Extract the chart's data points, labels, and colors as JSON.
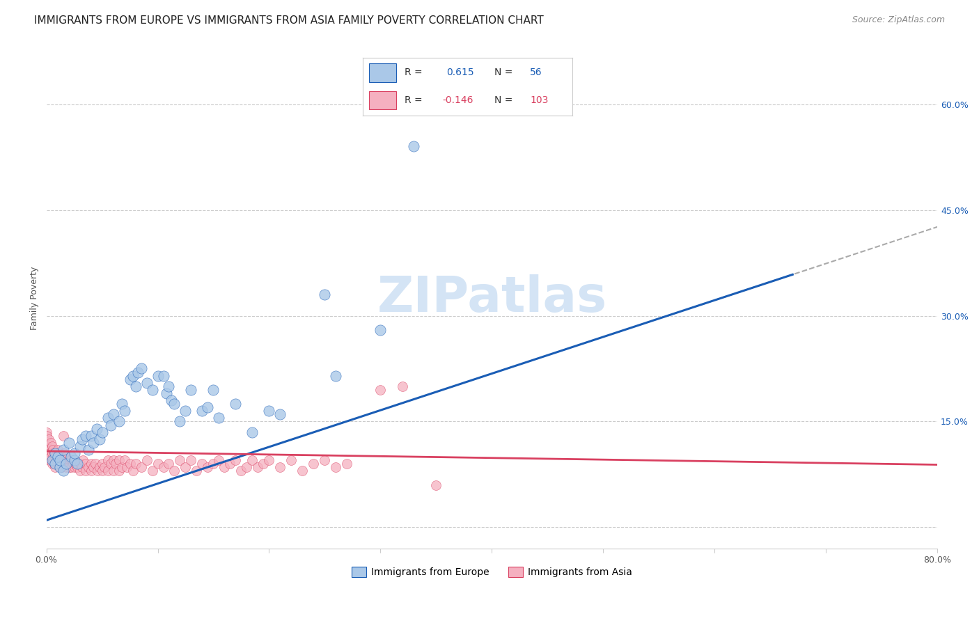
{
  "title": "IMMIGRANTS FROM EUROPE VS IMMIGRANTS FROM ASIA FAMILY POVERTY CORRELATION CHART",
  "source": "Source: ZipAtlas.com",
  "ylabel": "Family Poverty",
  "xlim": [
    0.0,
    0.8
  ],
  "ylim": [
    -0.03,
    0.68
  ],
  "ytick_positions": [
    0.0,
    0.15,
    0.3,
    0.45,
    0.6
  ],
  "ytick_labels_right": [
    "",
    "15.0%",
    "30.0%",
    "45.0%",
    "60.0%"
  ],
  "background_color": "#ffffff",
  "watermark": "ZIPatlas",
  "europe_color": "#aac8e8",
  "asia_color": "#f5b0c0",
  "europe_line_color": "#1a5db5",
  "asia_line_color": "#d94060",
  "dashed_line_color": "#aaaaaa",
  "grid_color": "#cccccc",
  "title_color": "#222222",
  "source_color": "#888888",
  "tick_color": "#555555",
  "right_tick_color": "#1a5db5",
  "watermark_color": "#d4e4f5",
  "title_fontsize": 11,
  "axis_label_fontsize": 9,
  "tick_fontsize": 9,
  "legend_fontsize": 10,
  "watermark_fontsize": 52,
  "scatter_size_europe": 120,
  "scatter_size_asia": 100,
  "europe_scatter": [
    [
      0.005,
      0.095
    ],
    [
      0.008,
      0.105
    ],
    [
      0.008,
      0.09
    ],
    [
      0.01,
      0.1
    ],
    [
      0.012,
      0.085
    ],
    [
      0.012,
      0.095
    ],
    [
      0.015,
      0.11
    ],
    [
      0.015,
      0.08
    ],
    [
      0.018,
      0.09
    ],
    [
      0.02,
      0.12
    ],
    [
      0.022,
      0.1
    ],
    [
      0.025,
      0.095
    ],
    [
      0.025,
      0.105
    ],
    [
      0.028,
      0.09
    ],
    [
      0.03,
      0.115
    ],
    [
      0.032,
      0.125
    ],
    [
      0.035,
      0.13
    ],
    [
      0.038,
      0.11
    ],
    [
      0.04,
      0.13
    ],
    [
      0.042,
      0.12
    ],
    [
      0.045,
      0.14
    ],
    [
      0.048,
      0.125
    ],
    [
      0.05,
      0.135
    ],
    [
      0.055,
      0.155
    ],
    [
      0.058,
      0.145
    ],
    [
      0.06,
      0.16
    ],
    [
      0.065,
      0.15
    ],
    [
      0.068,
      0.175
    ],
    [
      0.07,
      0.165
    ],
    [
      0.075,
      0.21
    ],
    [
      0.078,
      0.215
    ],
    [
      0.08,
      0.2
    ],
    [
      0.082,
      0.22
    ],
    [
      0.085,
      0.225
    ],
    [
      0.09,
      0.205
    ],
    [
      0.095,
      0.195
    ],
    [
      0.1,
      0.215
    ],
    [
      0.105,
      0.215
    ],
    [
      0.108,
      0.19
    ],
    [
      0.11,
      0.2
    ],
    [
      0.112,
      0.18
    ],
    [
      0.115,
      0.175
    ],
    [
      0.12,
      0.15
    ],
    [
      0.125,
      0.165
    ],
    [
      0.13,
      0.195
    ],
    [
      0.14,
      0.165
    ],
    [
      0.145,
      0.17
    ],
    [
      0.15,
      0.195
    ],
    [
      0.155,
      0.155
    ],
    [
      0.17,
      0.175
    ],
    [
      0.185,
      0.135
    ],
    [
      0.2,
      0.165
    ],
    [
      0.21,
      0.16
    ],
    [
      0.25,
      0.33
    ],
    [
      0.26,
      0.215
    ],
    [
      0.3,
      0.28
    ],
    [
      0.33,
      0.54
    ]
  ],
  "asia_scatter": [
    [
      0.0,
      0.135
    ],
    [
      0.0,
      0.13
    ],
    [
      0.0,
      0.115
    ],
    [
      0.002,
      0.125
    ],
    [
      0.002,
      0.11
    ],
    [
      0.003,
      0.105
    ],
    [
      0.003,
      0.095
    ],
    [
      0.004,
      0.12
    ],
    [
      0.004,
      0.1
    ],
    [
      0.005,
      0.115
    ],
    [
      0.005,
      0.105
    ],
    [
      0.005,
      0.09
    ],
    [
      0.006,
      0.11
    ],
    [
      0.006,
      0.095
    ],
    [
      0.007,
      0.105
    ],
    [
      0.007,
      0.09
    ],
    [
      0.008,
      0.1
    ],
    [
      0.008,
      0.085
    ],
    [
      0.009,
      0.095
    ],
    [
      0.01,
      0.11
    ],
    [
      0.01,
      0.09
    ],
    [
      0.012,
      0.1
    ],
    [
      0.012,
      0.085
    ],
    [
      0.013,
      0.095
    ],
    [
      0.014,
      0.085
    ],
    [
      0.015,
      0.13
    ],
    [
      0.015,
      0.095
    ],
    [
      0.016,
      0.105
    ],
    [
      0.018,
      0.1
    ],
    [
      0.018,
      0.085
    ],
    [
      0.02,
      0.095
    ],
    [
      0.02,
      0.085
    ],
    [
      0.022,
      0.095
    ],
    [
      0.022,
      0.085
    ],
    [
      0.024,
      0.09
    ],
    [
      0.025,
      0.095
    ],
    [
      0.025,
      0.085
    ],
    [
      0.026,
      0.09
    ],
    [
      0.028,
      0.085
    ],
    [
      0.03,
      0.09
    ],
    [
      0.03,
      0.08
    ],
    [
      0.032,
      0.085
    ],
    [
      0.033,
      0.095
    ],
    [
      0.035,
      0.09
    ],
    [
      0.035,
      0.08
    ],
    [
      0.038,
      0.085
    ],
    [
      0.04,
      0.09
    ],
    [
      0.04,
      0.08
    ],
    [
      0.042,
      0.085
    ],
    [
      0.044,
      0.09
    ],
    [
      0.046,
      0.08
    ],
    [
      0.048,
      0.085
    ],
    [
      0.05,
      0.09
    ],
    [
      0.05,
      0.08
    ],
    [
      0.052,
      0.085
    ],
    [
      0.055,
      0.095
    ],
    [
      0.055,
      0.08
    ],
    [
      0.058,
      0.09
    ],
    [
      0.06,
      0.095
    ],
    [
      0.06,
      0.08
    ],
    [
      0.062,
      0.09
    ],
    [
      0.065,
      0.095
    ],
    [
      0.065,
      0.08
    ],
    [
      0.068,
      0.085
    ],
    [
      0.07,
      0.095
    ],
    [
      0.072,
      0.085
    ],
    [
      0.075,
      0.09
    ],
    [
      0.078,
      0.08
    ],
    [
      0.08,
      0.09
    ],
    [
      0.085,
      0.085
    ],
    [
      0.09,
      0.095
    ],
    [
      0.095,
      0.08
    ],
    [
      0.1,
      0.09
    ],
    [
      0.105,
      0.085
    ],
    [
      0.11,
      0.09
    ],
    [
      0.115,
      0.08
    ],
    [
      0.12,
      0.095
    ],
    [
      0.125,
      0.085
    ],
    [
      0.13,
      0.095
    ],
    [
      0.135,
      0.08
    ],
    [
      0.14,
      0.09
    ],
    [
      0.145,
      0.085
    ],
    [
      0.15,
      0.09
    ],
    [
      0.155,
      0.095
    ],
    [
      0.16,
      0.085
    ],
    [
      0.165,
      0.09
    ],
    [
      0.17,
      0.095
    ],
    [
      0.175,
      0.08
    ],
    [
      0.18,
      0.085
    ],
    [
      0.185,
      0.095
    ],
    [
      0.19,
      0.085
    ],
    [
      0.195,
      0.09
    ],
    [
      0.2,
      0.095
    ],
    [
      0.21,
      0.085
    ],
    [
      0.22,
      0.095
    ],
    [
      0.23,
      0.08
    ],
    [
      0.24,
      0.09
    ],
    [
      0.25,
      0.095
    ],
    [
      0.26,
      0.085
    ],
    [
      0.27,
      0.09
    ],
    [
      0.3,
      0.195
    ],
    [
      0.32,
      0.2
    ],
    [
      0.35,
      0.06
    ]
  ]
}
